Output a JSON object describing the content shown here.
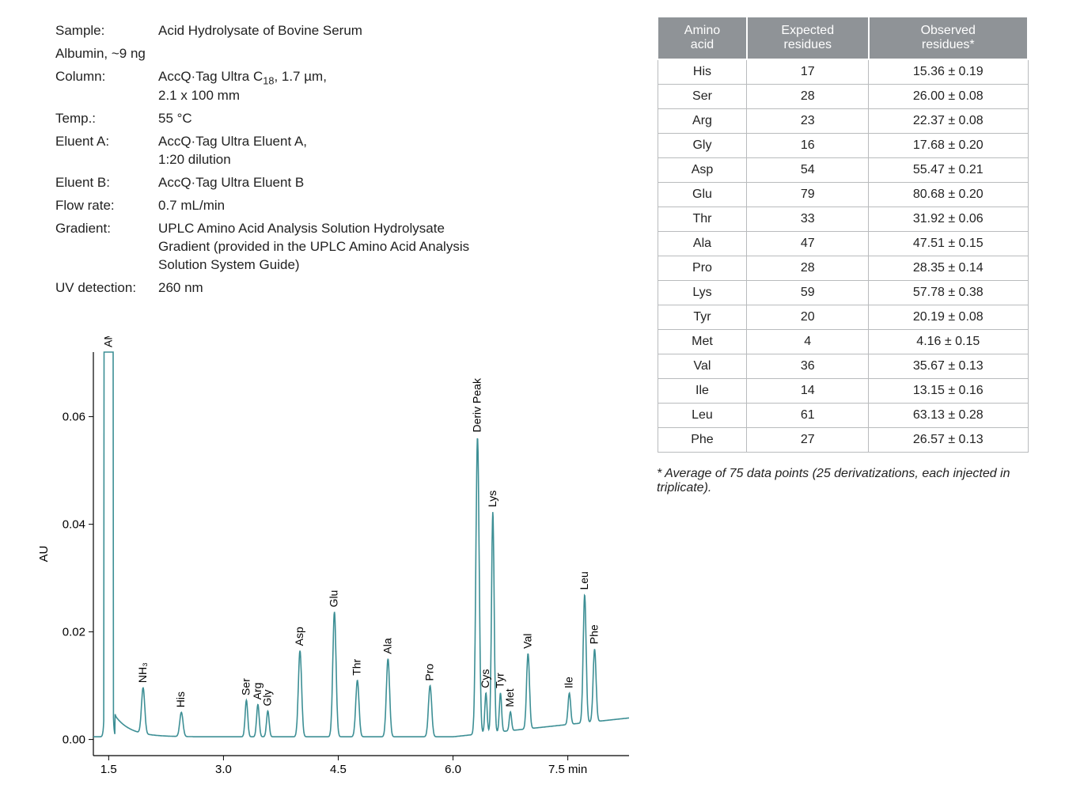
{
  "meta": {
    "sample_key": "Sample:",
    "sample_val_line1": "Acid Hydrolysate of Bovine Serum",
    "sample_val_line2": "Albumin, ~9 ng",
    "column_key": "Column:",
    "column_val_line1": "AccQ·Tag Ultra C",
    "column_sub": "18",
    "column_val_line1_tail": ", 1.7 µm,",
    "column_val_line2": "2.1 x 100 mm",
    "temp_key": "Temp.:",
    "temp_val": "55 °C",
    "eluentA_key": "Eluent A:",
    "eluentA_val_line1": "AccQ·Tag Ultra Eluent A,",
    "eluentA_val_line2": "1:20 dilution",
    "eluentB_key": "Eluent B:",
    "eluentB_val": "AccQ·Tag Ultra Eluent B",
    "flow_key": "Flow rate:",
    "flow_val": "0.7 mL/min",
    "gradient_key": "Gradient:",
    "gradient_val": "UPLC Amino Acid Analysis  Solution Hydrolysate Gradient (provided in the UPLC Amino Acid Analysis Solution System Guide)",
    "uv_key": "UV detection:",
    "uv_val": "260 nm"
  },
  "table": {
    "headers": [
      "Amino\nacid",
      "Expected\nresidues",
      "Observed\nresidues*"
    ],
    "rows": [
      [
        "His",
        "17",
        "15.36 ± 0.19"
      ],
      [
        "Ser",
        "28",
        "26.00 ± 0.08"
      ],
      [
        "Arg",
        "23",
        "22.37 ± 0.08"
      ],
      [
        "Gly",
        "16",
        "17.68 ± 0.20"
      ],
      [
        "Asp",
        "54",
        "55.47 ± 0.21"
      ],
      [
        "Glu",
        "79",
        "80.68 ± 0.20"
      ],
      [
        "Thr",
        "33",
        "31.92 ± 0.06"
      ],
      [
        "Ala",
        "47",
        "47.51 ± 0.15"
      ],
      [
        "Pro",
        "28",
        "28.35 ± 0.14"
      ],
      [
        "Lys",
        "59",
        "57.78 ± 0.38"
      ],
      [
        "Tyr",
        "20",
        "20.19 ± 0.08"
      ],
      [
        "Met",
        "4",
        "4.16 ± 0.15"
      ],
      [
        "Val",
        "36",
        "35.67 ± 0.13"
      ],
      [
        "Ile",
        "14",
        "13.15 ± 0.16"
      ],
      [
        "Leu",
        "61",
        "63.13 ± 0.28"
      ],
      [
        "Phe",
        "27",
        "26.57 ± 0.13"
      ]
    ],
    "footnote": "* Average of 75 data points (25 derivatizations, each injected in triplicate)."
  },
  "chart": {
    "type": "chromatogram",
    "ylabel": "AU",
    "xlabel_suffix": "min",
    "line_color": "#3d8f95",
    "axis_color": "#000000",
    "text_color": "#000000",
    "label_fontsize": 14,
    "axis_fontsize": 15,
    "xlim": [
      1.3,
      8.3
    ],
    "ylim": [
      -0.003,
      0.072
    ],
    "xticks": [
      1.5,
      3.0,
      4.5,
      6.0,
      7.5
    ],
    "yticks": [
      0.0,
      0.02,
      0.04,
      0.06
    ],
    "baseline": 0.0005,
    "peaks": [
      {
        "x": 1.5,
        "h": 0.072,
        "w": 0.08,
        "label": "AMQ",
        "flat": true
      },
      {
        "x": 1.95,
        "h": 0.0085,
        "w": 0.05,
        "label": "NH₃"
      },
      {
        "x": 2.45,
        "h": 0.0045,
        "w": 0.05,
        "label": "His"
      },
      {
        "x": 3.3,
        "h": 0.0068,
        "w": 0.04,
        "label": "Ser"
      },
      {
        "x": 3.45,
        "h": 0.006,
        "w": 0.04,
        "label": "Arg"
      },
      {
        "x": 3.58,
        "h": 0.0048,
        "w": 0.04,
        "label": "Gly"
      },
      {
        "x": 4.0,
        "h": 0.016,
        "w": 0.05,
        "label": "Asp"
      },
      {
        "x": 4.45,
        "h": 0.0232,
        "w": 0.05,
        "label": "Glu"
      },
      {
        "x": 4.75,
        "h": 0.0105,
        "w": 0.05,
        "label": "Thr"
      },
      {
        "x": 5.15,
        "h": 0.0145,
        "w": 0.05,
        "label": "Ala"
      },
      {
        "x": 5.7,
        "h": 0.0095,
        "w": 0.05,
        "label": "Pro"
      },
      {
        "x": 6.32,
        "h": 0.0552,
        "w": 0.05,
        "label": "Deriv Peak"
      },
      {
        "x": 6.43,
        "h": 0.0075,
        "w": 0.035,
        "label": "Cys"
      },
      {
        "x": 6.52,
        "h": 0.041,
        "w": 0.04,
        "label": "Lys"
      },
      {
        "x": 6.62,
        "h": 0.0072,
        "w": 0.035,
        "label": "Tyr"
      },
      {
        "x": 6.75,
        "h": 0.0035,
        "w": 0.035,
        "label": "Met"
      },
      {
        "x": 6.98,
        "h": 0.014,
        "w": 0.045,
        "label": "Val"
      },
      {
        "x": 7.52,
        "h": 0.0058,
        "w": 0.04,
        "label": "Ile"
      },
      {
        "x": 7.72,
        "h": 0.0238,
        "w": 0.045,
        "label": "Leu"
      },
      {
        "x": 7.85,
        "h": 0.0135,
        "w": 0.045,
        "label": "Phe"
      }
    ],
    "tail_rise": 0.0035
  }
}
